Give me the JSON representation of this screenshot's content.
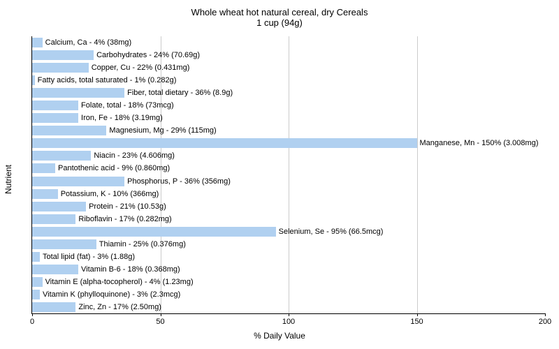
{
  "chart": {
    "type": "bar-horizontal",
    "title": "Whole wheat hot natural cereal, dry Cereals",
    "subtitle": "1 cup (94g)",
    "xlabel": "% Daily Value",
    "ylabel": "Nutrient",
    "xlim": [
      0,
      200
    ],
    "xticks": [
      0,
      50,
      100,
      150,
      200
    ],
    "background_color": "#ffffff",
    "grid_color": "#cccccc",
    "bar_color": "#b0d0f0",
    "axis_color": "#000000",
    "title_fontsize": 13,
    "label_fontsize": 12,
    "tick_fontsize": 11,
    "bar_label_fontsize": 11,
    "items": [
      {
        "name": "Calcium, Ca",
        "pct": 4,
        "amount": "38mg",
        "label": "Calcium, Ca - 4% (38mg)"
      },
      {
        "name": "Carbohydrates",
        "pct": 24,
        "amount": "70.69g",
        "label": "Carbohydrates - 24% (70.69g)"
      },
      {
        "name": "Copper, Cu",
        "pct": 22,
        "amount": "0.431mg",
        "label": "Copper, Cu - 22% (0.431mg)"
      },
      {
        "name": "Fatty acids, total saturated",
        "pct": 1,
        "amount": "0.282g",
        "label": "Fatty acids, total saturated - 1% (0.282g)"
      },
      {
        "name": "Fiber, total dietary",
        "pct": 36,
        "amount": "8.9g",
        "label": "Fiber, total dietary - 36% (8.9g)"
      },
      {
        "name": "Folate, total",
        "pct": 18,
        "amount": "73mcg",
        "label": "Folate, total - 18% (73mcg)"
      },
      {
        "name": "Iron, Fe",
        "pct": 18,
        "amount": "3.19mg",
        "label": "Iron, Fe - 18% (3.19mg)"
      },
      {
        "name": "Magnesium, Mg",
        "pct": 29,
        "amount": "115mg",
        "label": "Magnesium, Mg - 29% (115mg)"
      },
      {
        "name": "Manganese, Mn",
        "pct": 150,
        "amount": "3.008mg",
        "label": "Manganese, Mn - 150% (3.008mg)"
      },
      {
        "name": "Niacin",
        "pct": 23,
        "amount": "4.606mg",
        "label": "Niacin - 23% (4.606mg)"
      },
      {
        "name": "Pantothenic acid",
        "pct": 9,
        "amount": "0.860mg",
        "label": "Pantothenic acid - 9% (0.860mg)"
      },
      {
        "name": "Phosphorus, P",
        "pct": 36,
        "amount": "356mg",
        "label": "Phosphorus, P - 36% (356mg)"
      },
      {
        "name": "Potassium, K",
        "pct": 10,
        "amount": "366mg",
        "label": "Potassium, K - 10% (366mg)"
      },
      {
        "name": "Protein",
        "pct": 21,
        "amount": "10.53g",
        "label": "Protein - 21% (10.53g)"
      },
      {
        "name": "Riboflavin",
        "pct": 17,
        "amount": "0.282mg",
        "label": "Riboflavin - 17% (0.282mg)"
      },
      {
        "name": "Selenium, Se",
        "pct": 95,
        "amount": "66.5mcg",
        "label": "Selenium, Se - 95% (66.5mcg)"
      },
      {
        "name": "Thiamin",
        "pct": 25,
        "amount": "0.376mg",
        "label": "Thiamin - 25% (0.376mg)"
      },
      {
        "name": "Total lipid (fat)",
        "pct": 3,
        "amount": "1.88g",
        "label": "Total lipid (fat) - 3% (1.88g)"
      },
      {
        "name": "Vitamin B-6",
        "pct": 18,
        "amount": "0.368mg",
        "label": "Vitamin B-6 - 18% (0.368mg)"
      },
      {
        "name": "Vitamin E (alpha-tocopherol)",
        "pct": 4,
        "amount": "1.23mg",
        "label": "Vitamin E (alpha-tocopherol) - 4% (1.23mg)"
      },
      {
        "name": "Vitamin K (phylloquinone)",
        "pct": 3,
        "amount": "2.3mcg",
        "label": "Vitamin K (phylloquinone) - 3% (2.3mcg)"
      },
      {
        "name": "Zinc, Zn",
        "pct": 17,
        "amount": "2.50mg",
        "label": "Zinc, Zn - 17% (2.50mg)"
      }
    ]
  }
}
